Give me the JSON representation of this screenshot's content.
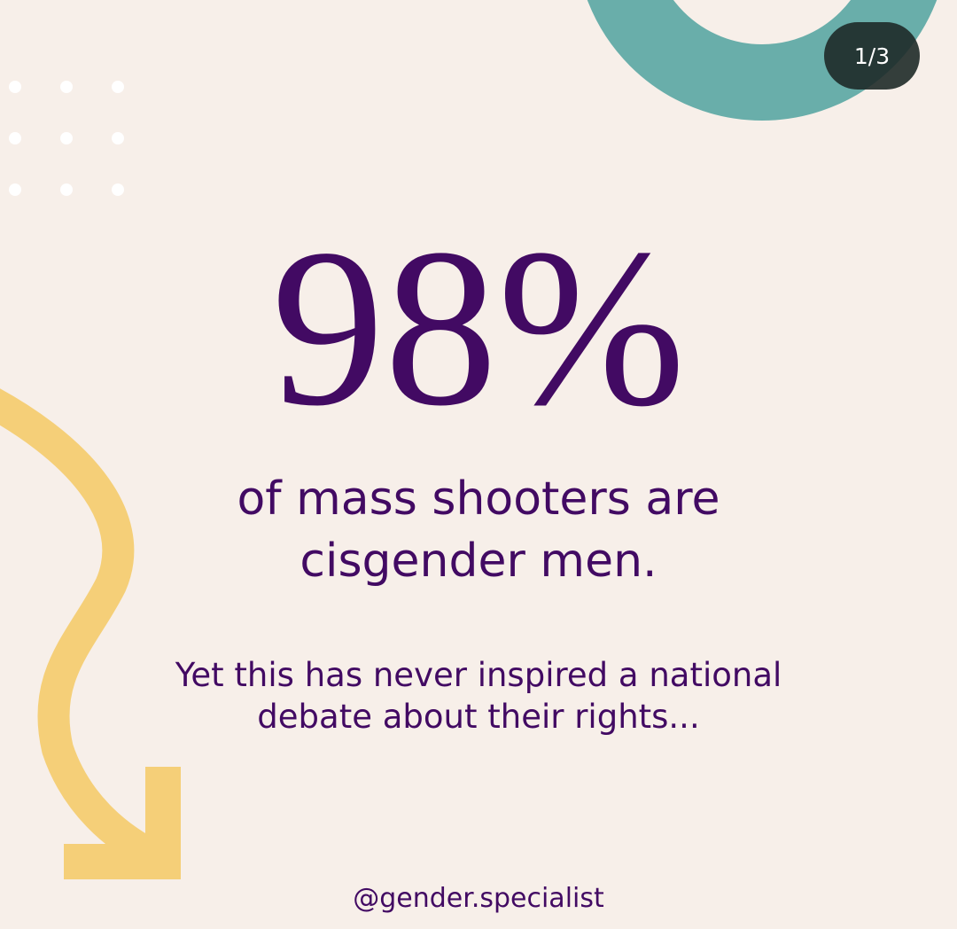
{
  "page_counter": "1/3",
  "headline": "98%",
  "subheadline_lines": [
    "of mass shooters are",
    "cisgender men."
  ],
  "body_lines": [
    "Yet this has never inspired a national",
    "debate about their rights..."
  ],
  "handle": "@gender.specialist"
}
